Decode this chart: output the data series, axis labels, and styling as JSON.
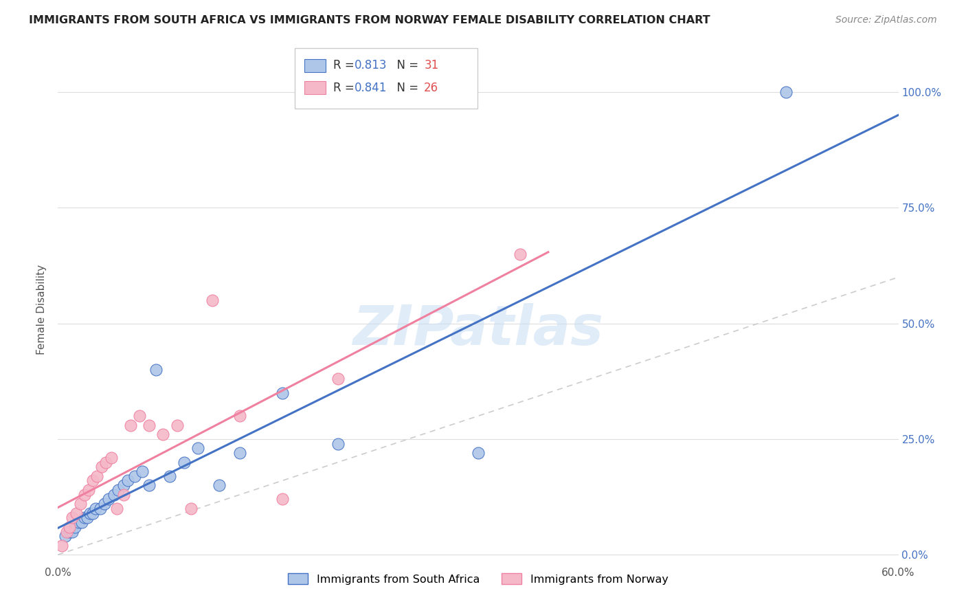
{
  "title": "IMMIGRANTS FROM SOUTH AFRICA VS IMMIGRANTS FROM NORWAY FEMALE DISABILITY CORRELATION CHART",
  "source": "Source: ZipAtlas.com",
  "ylabel": "Female Disability",
  "xlim": [
    0.0,
    0.6
  ],
  "ylim": [
    -0.02,
    1.08
  ],
  "ytick_labels": [
    "0.0%",
    "25.0%",
    "50.0%",
    "75.0%",
    "100.0%"
  ],
  "ytick_values": [
    0.0,
    0.25,
    0.5,
    0.75,
    1.0
  ],
  "xtick_labels": [
    "0.0%",
    "",
    "",
    "",
    "",
    "60.0%"
  ],
  "xtick_values": [
    0.0,
    0.12,
    0.24,
    0.36,
    0.48,
    0.6
  ],
  "south_africa_R": 0.813,
  "south_africa_N": 31,
  "norway_R": 0.841,
  "norway_N": 26,
  "south_africa_color": "#aec6e8",
  "norway_color": "#f4b8c8",
  "south_africa_line_color": "#4472c4",
  "norway_line_color": "#f080a0",
  "diagonal_color": "#cccccc",
  "watermark": "ZIPatlas",
  "R_N_color": "#4472c4",
  "N_value_color": "#e05050",
  "south_africa_x": [
    0.005,
    0.008,
    0.01,
    0.012,
    0.015,
    0.017,
    0.019,
    0.021,
    0.023,
    0.025,
    0.027,
    0.03,
    0.033,
    0.036,
    0.04,
    0.043,
    0.047,
    0.05,
    0.055,
    0.06,
    0.065,
    0.07,
    0.08,
    0.09,
    0.1,
    0.115,
    0.13,
    0.16,
    0.2,
    0.3,
    0.52
  ],
  "south_africa_y": [
    0.04,
    0.05,
    0.05,
    0.06,
    0.07,
    0.07,
    0.08,
    0.08,
    0.09,
    0.09,
    0.1,
    0.1,
    0.11,
    0.12,
    0.13,
    0.14,
    0.15,
    0.16,
    0.17,
    0.18,
    0.15,
    0.4,
    0.17,
    0.2,
    0.23,
    0.15,
    0.22,
    0.35,
    0.24,
    0.22,
    1.0
  ],
  "norway_x": [
    0.003,
    0.006,
    0.008,
    0.01,
    0.013,
    0.016,
    0.019,
    0.022,
    0.025,
    0.028,
    0.031,
    0.034,
    0.038,
    0.042,
    0.047,
    0.052,
    0.058,
    0.065,
    0.075,
    0.085,
    0.095,
    0.11,
    0.13,
    0.16,
    0.2,
    0.33
  ],
  "norway_y": [
    0.02,
    0.05,
    0.06,
    0.08,
    0.09,
    0.11,
    0.13,
    0.14,
    0.16,
    0.17,
    0.19,
    0.2,
    0.21,
    0.1,
    0.13,
    0.28,
    0.3,
    0.28,
    0.26,
    0.28,
    0.1,
    0.55,
    0.3,
    0.12,
    0.38,
    0.65
  ]
}
